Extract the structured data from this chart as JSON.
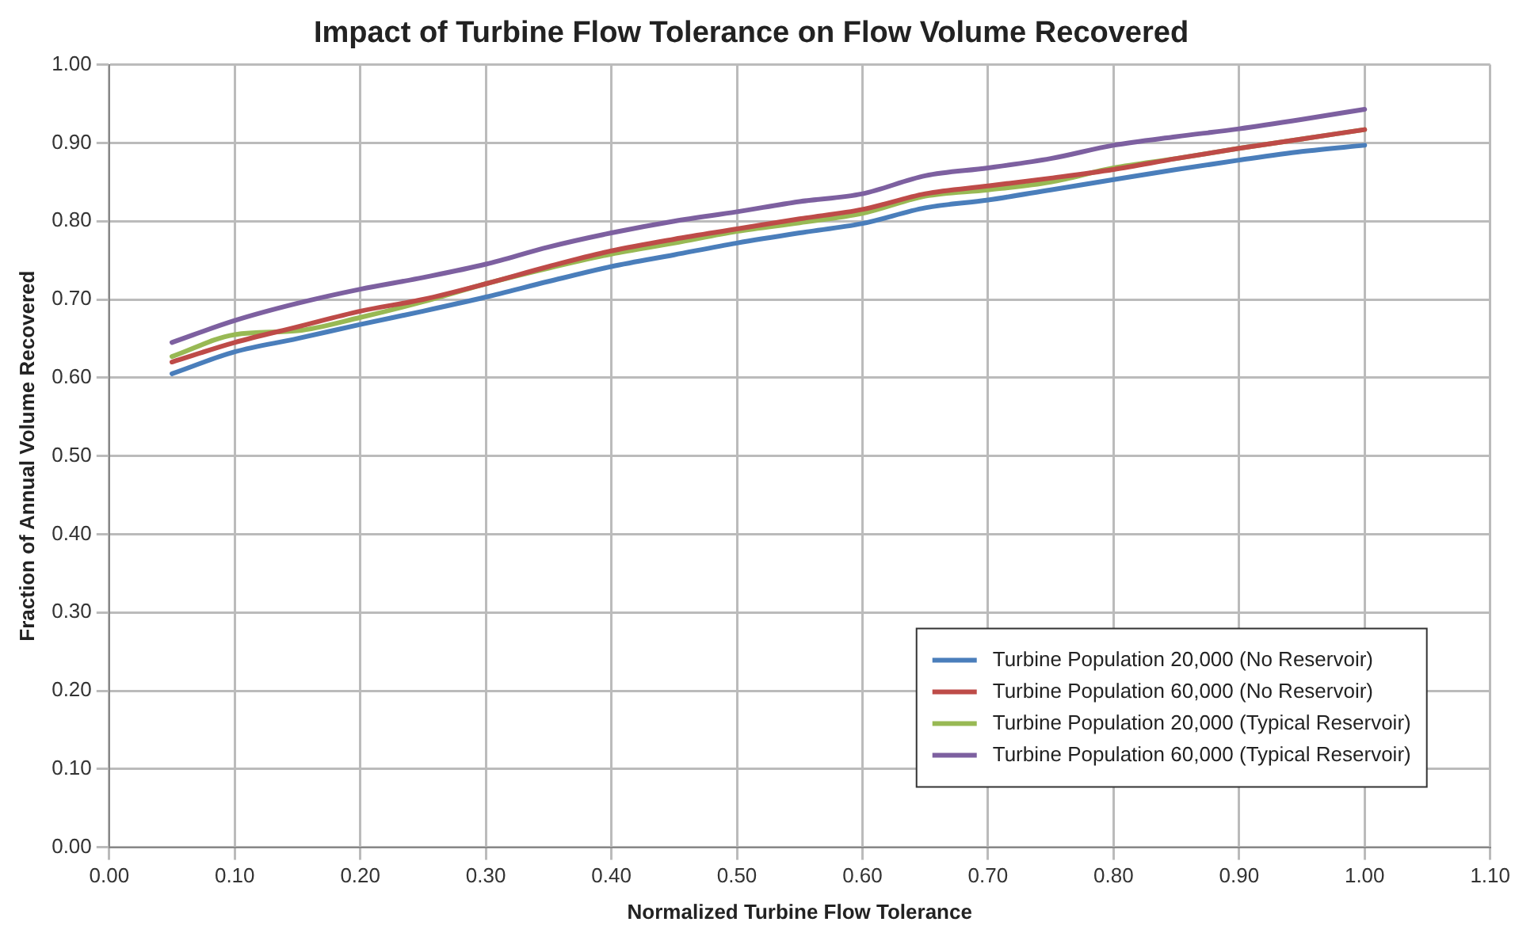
{
  "chart_data": {
    "type": "line",
    "title": "Impact of Turbine Flow Tolerance on Flow Volume Recovered",
    "xlabel": "Normalized Turbine Flow Tolerance",
    "ylabel": "Fraction of Annual Volume Recovered",
    "x": [
      0.05,
      0.1,
      0.15,
      0.2,
      0.25,
      0.3,
      0.35,
      0.4,
      0.45,
      0.5,
      0.55,
      0.6,
      0.65,
      0.7,
      0.75,
      0.8,
      0.85,
      0.9,
      0.95,
      1.0
    ],
    "series": [
      {
        "name": "Turbine Population 20,000 (No Reservoir)",
        "color": "#4a7ebb",
        "values": [
          0.605,
          0.633,
          0.65,
          0.668,
          0.685,
          0.703,
          0.723,
          0.742,
          0.757,
          0.772,
          0.785,
          0.797,
          0.817,
          0.827,
          0.84,
          0.853,
          0.866,
          0.878,
          0.889,
          0.897
        ]
      },
      {
        "name": "Turbine Population 60,000 (No Reservoir)",
        "color": "#be4b48",
        "values": [
          0.62,
          0.645,
          0.665,
          0.685,
          0.7,
          0.72,
          0.742,
          0.762,
          0.777,
          0.79,
          0.803,
          0.815,
          0.835,
          0.845,
          0.855,
          0.866,
          0.88,
          0.893,
          0.905,
          0.917
        ]
      },
      {
        "name": "Turbine Population 20,000 (Typical Reservoir)",
        "color": "#98b954",
        "values": [
          0.627,
          0.655,
          0.66,
          0.677,
          0.697,
          0.72,
          0.74,
          0.758,
          0.772,
          0.787,
          0.798,
          0.81,
          0.832,
          0.84,
          0.85,
          0.868,
          0.88,
          0.893,
          0.905,
          0.917
        ]
      },
      {
        "name": "Turbine Population 60,000 (Typical Reservoir)",
        "color": "#7d60a0",
        "values": [
          0.645,
          0.673,
          0.695,
          0.713,
          0.728,
          0.745,
          0.767,
          0.785,
          0.8,
          0.812,
          0.825,
          0.835,
          0.858,
          0.868,
          0.88,
          0.897,
          0.908,
          0.918,
          0.93,
          0.943
        ]
      }
    ],
    "xlim": [
      0,
      1.1
    ],
    "xticks": [
      {
        "value": 0,
        "label": "0.00"
      },
      {
        "value": 0.1,
        "label": "0.10"
      },
      {
        "value": 0.2,
        "label": "0.20"
      },
      {
        "value": 0.3,
        "label": "0.30"
      },
      {
        "value": 0.4,
        "label": "0.40"
      },
      {
        "value": 0.5,
        "label": "0.50"
      },
      {
        "value": 0.6,
        "label": "0.60"
      },
      {
        "value": 0.7,
        "label": "0.70"
      },
      {
        "value": 0.8,
        "label": "0.80"
      },
      {
        "value": 0.9,
        "label": "0.90"
      },
      {
        "value": 1.0,
        "label": "1.00"
      },
      {
        "value": 1.1,
        "label": "1.10"
      }
    ],
    "ylim": [
      0,
      1
    ],
    "yticks": [
      {
        "value": 0,
        "label": "0.00"
      },
      {
        "value": 0.1,
        "label": "0.10"
      },
      {
        "value": 0.2,
        "label": "0.20"
      },
      {
        "value": 0.3,
        "label": "0.30"
      },
      {
        "value": 0.4,
        "label": "0.40"
      },
      {
        "value": 0.5,
        "label": "0.50"
      },
      {
        "value": 0.6,
        "label": "0.60"
      },
      {
        "value": 0.7,
        "label": "0.70"
      },
      {
        "value": 0.8,
        "label": "0.80"
      },
      {
        "value": 0.9,
        "label": "0.90"
      },
      {
        "value": 1.0,
        "label": "1.00"
      }
    ],
    "grid": true,
    "legend": "bottom right",
    "marker": "none",
    "line_style": "solid"
  }
}
